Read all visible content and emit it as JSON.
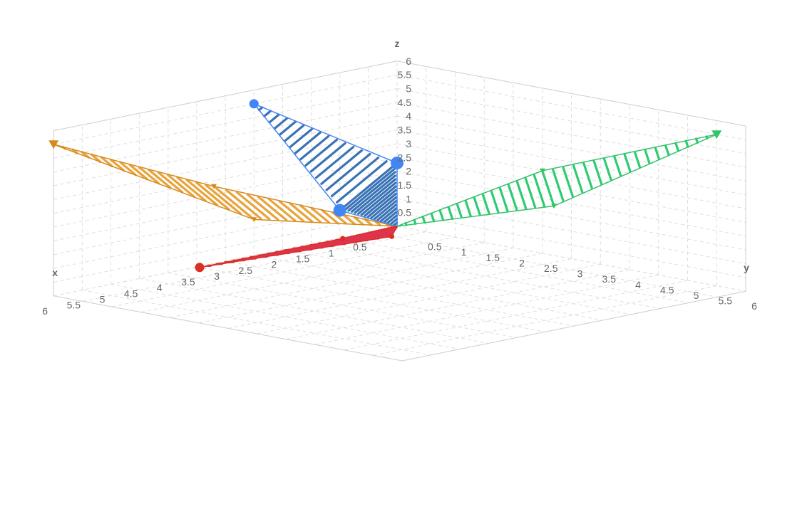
{
  "chart_data": {
    "type": "area",
    "projection": "3d",
    "axes": {
      "x": {
        "title": "x",
        "range": [
          0,
          6
        ],
        "ticks": [
          "0.5",
          "1",
          "1.5",
          "2",
          "2.5",
          "3",
          "3.5",
          "4",
          "4.5",
          "5",
          "5.5",
          "6"
        ]
      },
      "y": {
        "title": "y",
        "range": [
          0,
          6
        ],
        "ticks": [
          "0.5",
          "1",
          "1.5",
          "2",
          "2.5",
          "3",
          "3.5",
          "4",
          "4.5",
          "5",
          "5.5",
          "6"
        ]
      },
      "z": {
        "title": "z",
        "range": [
          0,
          6
        ],
        "ticks": [
          "0.5",
          "1",
          "1.5",
          "2",
          "2.5",
          "3",
          "3.5",
          "4",
          "4.5",
          "5",
          "5.5",
          "6"
        ]
      }
    },
    "grid": true,
    "legend": "none",
    "series": [
      {
        "color": "#e8a33b",
        "stroke": "#d48a1c",
        "marker": "triangle",
        "points": [
          [
            0,
            0,
            0
          ],
          [
            2.5,
            0,
            1.3
          ],
          [
            6,
            0,
            5.5
          ],
          [
            3.2,
            0,
            2.8
          ]
        ]
      },
      {
        "color": "#3a73b5",
        "stroke": "#4285f4",
        "marker": "circle",
        "points": [
          [
            0,
            0,
            0
          ],
          [
            1,
            0,
            1
          ],
          [
            2.5,
            0,
            5.5
          ],
          [
            0,
            0,
            2.3
          ]
        ]
      },
      {
        "color": "#e0334d",
        "stroke": "#d93025",
        "marker": "circle",
        "points": [
          [
            0,
            0,
            0
          ],
          [
            1,
            0.05,
            0
          ],
          [
            3.5,
            0.05,
            0
          ],
          [
            0.5,
            0.4,
            0
          ]
        ]
      },
      {
        "color": "#2ecc71",
        "stroke": "#34c26a",
        "marker": "triangle",
        "points": [
          [
            0,
            0,
            0
          ],
          [
            0,
            2.7,
            1.8
          ],
          [
            0,
            5.5,
            5.5
          ],
          [
            0,
            2.5,
            3
          ]
        ]
      }
    ]
  }
}
